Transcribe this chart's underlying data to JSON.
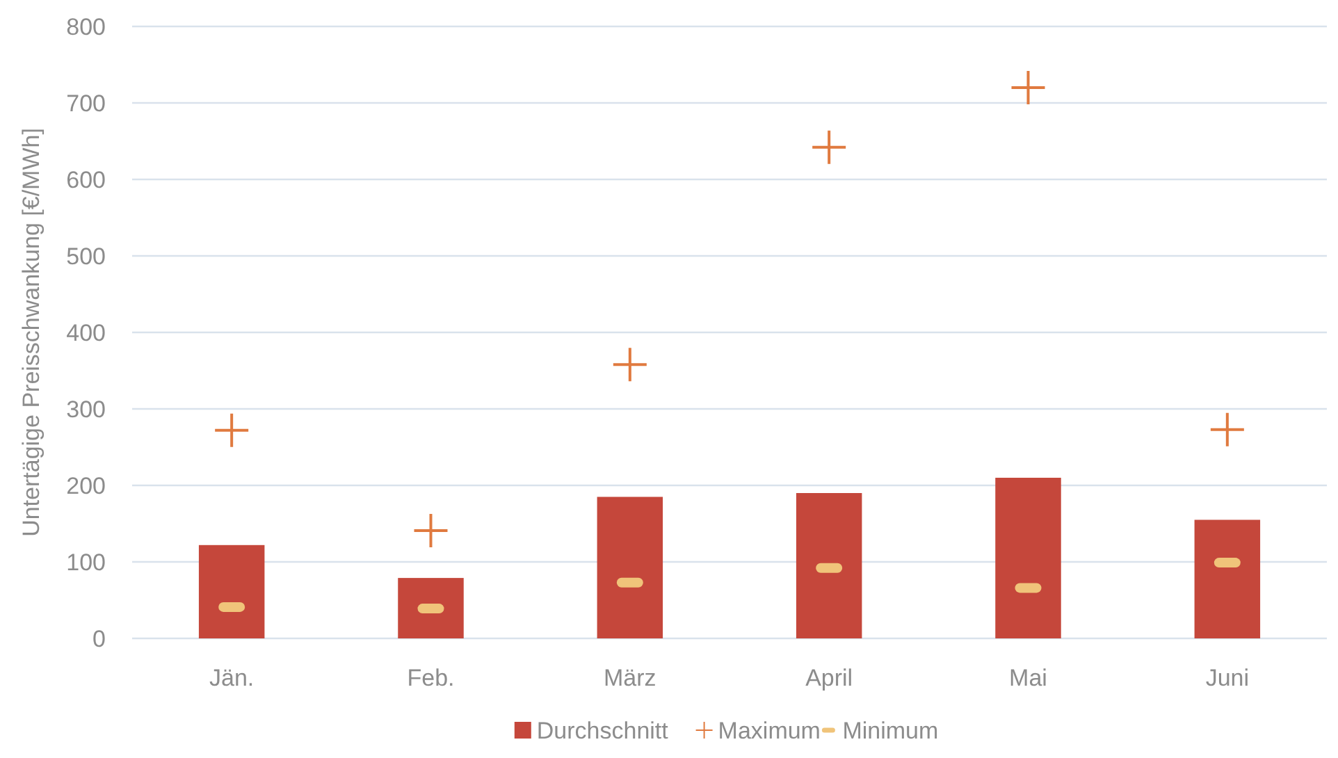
{
  "chart_data": {
    "type": "bar",
    "ylabel": "Untertägige Preisschwankung [€/MWh]",
    "categories": [
      "Jän.",
      "Feb.",
      "März",
      "April",
      "Mai",
      "Juni"
    ],
    "series": [
      {
        "name": "Durchschnitt",
        "type": "bar",
        "color": "#c5473b",
        "values": [
          122,
          79,
          185,
          190,
          210,
          155
        ]
      },
      {
        "name": "Maximum",
        "type": "scatter",
        "marker": "cross",
        "color": "#e07a3f",
        "values": [
          272,
          141,
          358,
          642,
          720,
          273
        ]
      },
      {
        "name": "Minimum",
        "type": "scatter",
        "color": "#f0c47a",
        "values": [
          41,
          39,
          73,
          92,
          66,
          99
        ]
      }
    ],
    "ylim": [
      0,
      800
    ],
    "yticks": [
      0,
      100,
      200,
      300,
      400,
      500,
      600,
      700,
      800
    ],
    "grid": "y",
    "legend": "bottom"
  }
}
